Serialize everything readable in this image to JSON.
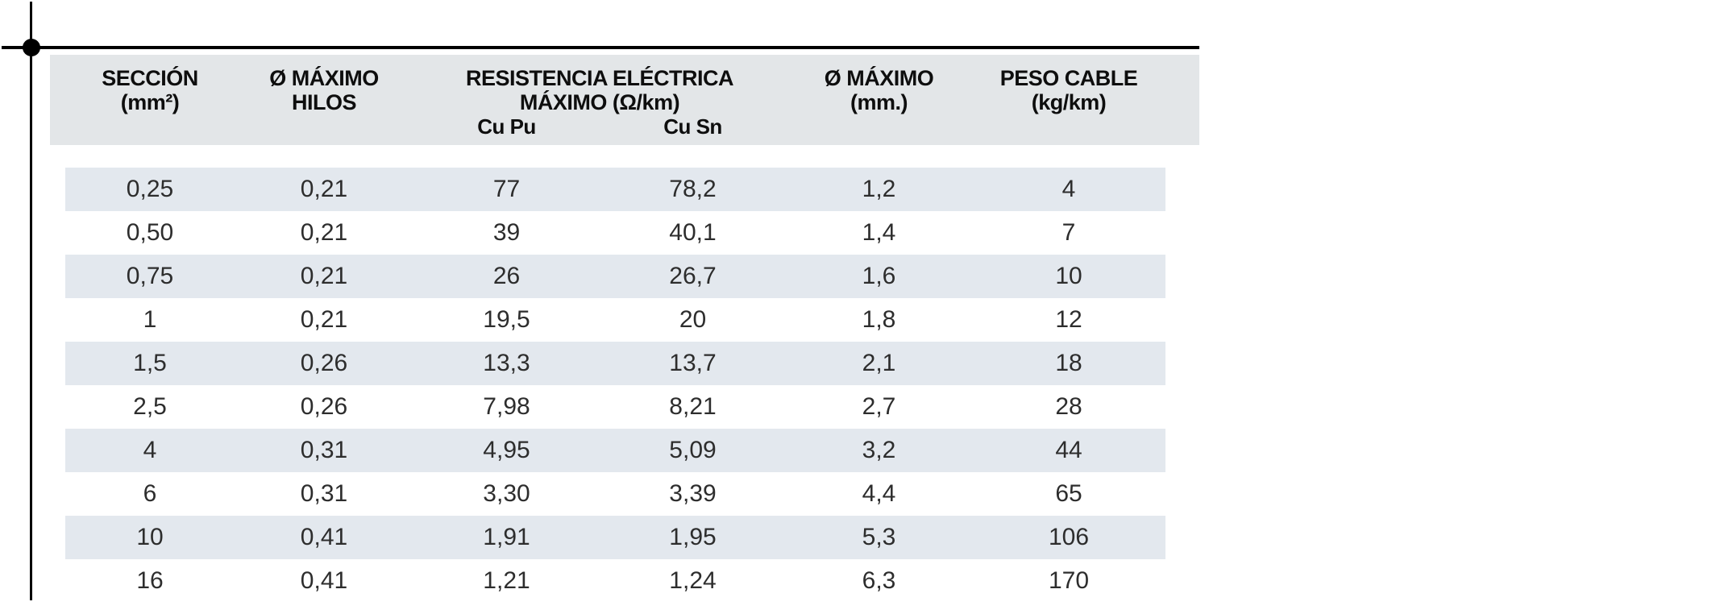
{
  "colors": {
    "header_band": "#e3e6e8",
    "row_stripe": "#e3e8ee",
    "rule": "#000000",
    "text": "#2d2d2d",
    "header_text": "#0e0e0e"
  },
  "table": {
    "header": {
      "col_seccion": [
        "SECCIÓN",
        "(mm²)"
      ],
      "col_hilos": [
        "Ø MÁXIMO",
        "HILOS"
      ],
      "col_resistencia": [
        "RESISTENCIA ELÉCTRICA",
        "MÁXIMO (Ω/km)"
      ],
      "sub_cu_pu": "Cu Pu",
      "sub_cu_sn": "Cu Sn",
      "col_diametro": [
        "Ø MÁXIMO",
        "(mm.)"
      ],
      "col_peso": [
        "PESO CABLE",
        "(kg/km)"
      ]
    },
    "rows": [
      [
        "0,25",
        "0,21",
        "77",
        "78,2",
        "1,2",
        "4"
      ],
      [
        "0,50",
        "0,21",
        "39",
        "40,1",
        "1,4",
        "7"
      ],
      [
        "0,75",
        "0,21",
        "26",
        "26,7",
        "1,6",
        "10"
      ],
      [
        "1",
        "0,21",
        "19,5",
        "20",
        "1,8",
        "12"
      ],
      [
        "1,5",
        "0,26",
        "13,3",
        "13,7",
        "2,1",
        "18"
      ],
      [
        "2,5",
        "0,26",
        "7,98",
        "8,21",
        "2,7",
        "28"
      ],
      [
        "4",
        "0,31",
        "4,95",
        "5,09",
        "3,2",
        "44"
      ],
      [
        "6",
        "0,31",
        "3,30",
        "3,39",
        "4,4",
        "65"
      ],
      [
        "10",
        "0,41",
        "1,91",
        "1,95",
        "5,3",
        "106"
      ],
      [
        "16",
        "0,41",
        "1,21",
        "1,24",
        "6,3",
        "170"
      ]
    ]
  }
}
